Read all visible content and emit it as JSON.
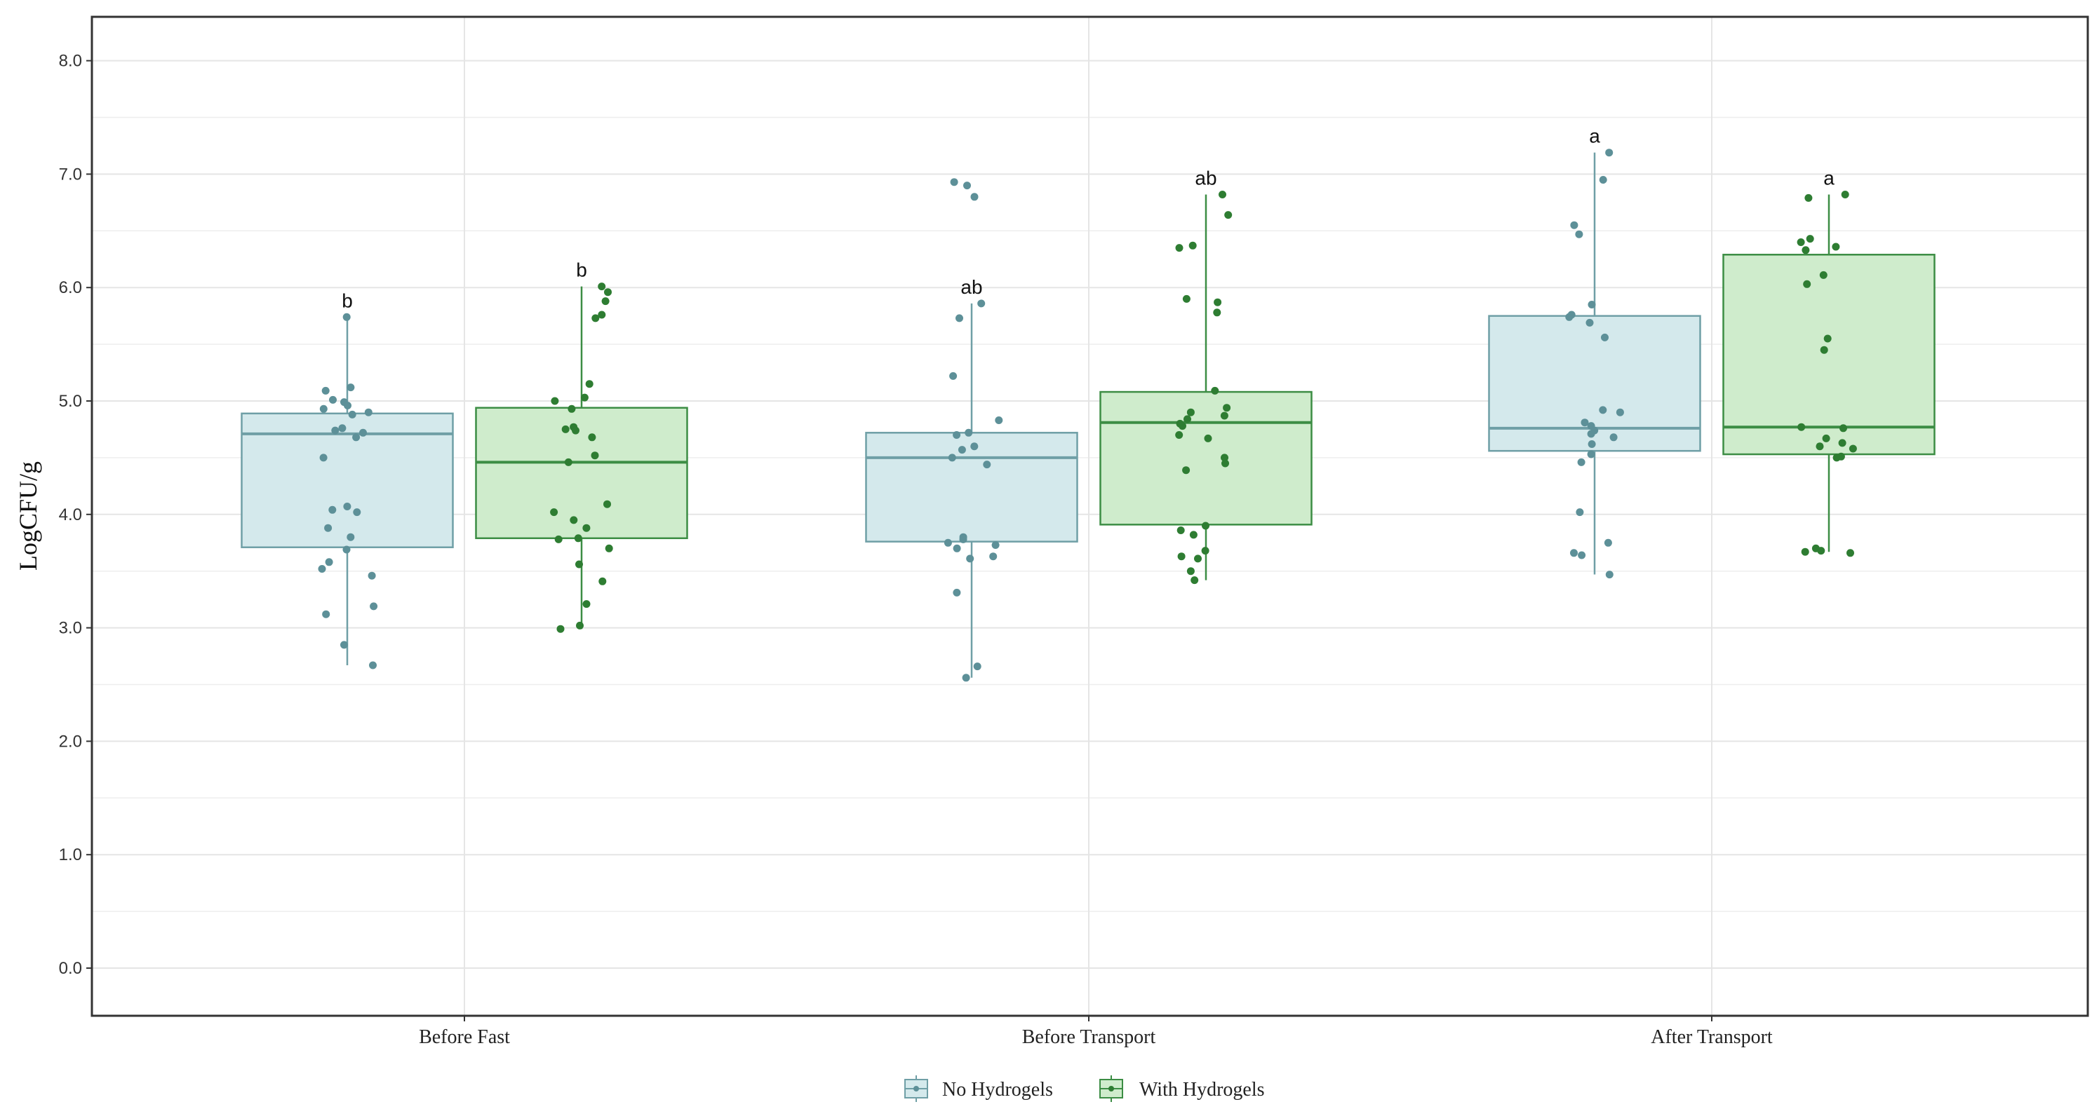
{
  "chart_data": {
    "type": "box",
    "ylabel": "LogCFU/g",
    "xlabel": "",
    "ylim": [
      -0.4,
      8.4
    ],
    "yticks": [
      "0.0",
      "1.0",
      "2.0",
      "3.0",
      "4.0",
      "5.0",
      "6.0",
      "7.0",
      "8.0"
    ],
    "categories": [
      "Before Fast",
      "Before Transport",
      "After Transport"
    ],
    "legend_position": "bottom",
    "colors": {
      "no_fill": "#d4e9ec",
      "no_line": "#6f9fa6",
      "no_point": "#5d9098",
      "with_fill": "#cfeccc",
      "with_line": "#3c8d44",
      "with_point": "#2e7d32",
      "grid": "#e5e5e5",
      "frame": "#333333"
    },
    "series": [
      {
        "name": "No Hydrogels",
        "boxes": [
          {
            "category": "Before Fast",
            "q1": 3.71,
            "median": 4.71,
            "q3": 4.89,
            "whisker_low": 2.67,
            "whisker_high": 5.74,
            "letter": "b",
            "points": [
              5.74,
              5.12,
              5.09,
              5.01,
              4.99,
              4.96,
              4.93,
              4.9,
              4.88,
              4.76,
              4.74,
              4.72,
              4.68,
              4.5,
              4.07,
              4.04,
              4.02,
              3.88,
              3.8,
              3.69,
              3.58,
              3.52,
              3.46,
              3.19,
              3.12,
              2.85,
              2.67
            ]
          },
          {
            "category": "Before Transport",
            "q1": 3.76,
            "median": 4.5,
            "q3": 4.72,
            "whisker_low": 2.56,
            "whisker_high": 5.86,
            "letter": "ab",
            "points": [
              6.93,
              6.9,
              6.8,
              5.86,
              5.73,
              5.22,
              4.83,
              4.72,
              4.7,
              4.6,
              4.57,
              4.5,
              4.44,
              3.8,
              3.78,
              3.75,
              3.73,
              3.7,
              3.63,
              3.61,
              3.31,
              2.66,
              2.56
            ]
          },
          {
            "category": "After Transport",
            "q1": 4.56,
            "median": 4.76,
            "q3": 5.75,
            "whisker_low": 3.47,
            "whisker_high": 7.19,
            "letter": "a",
            "points": [
              7.19,
              6.95,
              6.55,
              6.47,
              5.85,
              5.76,
              5.74,
              5.69,
              5.56,
              4.92,
              4.9,
              4.81,
              4.78,
              4.74,
              4.71,
              4.68,
              4.62,
              4.53,
              4.46,
              4.02,
              3.75,
              3.66,
              3.64,
              3.47
            ]
          }
        ]
      },
      {
        "name": "With Hydrogels",
        "boxes": [
          {
            "category": "Before Fast",
            "q1": 3.79,
            "median": 4.46,
            "q3": 4.94,
            "whisker_low": 2.99,
            "whisker_high": 6.01,
            "letter": "b",
            "points": [
              6.01,
              5.96,
              5.88,
              5.76,
              5.73,
              5.15,
              5.03,
              5.0,
              4.93,
              4.77,
              4.75,
              4.74,
              4.68,
              4.52,
              4.46,
              4.09,
              4.02,
              3.95,
              3.88,
              3.79,
              3.78,
              3.7,
              3.56,
              3.41,
              3.21,
              3.02,
              2.99
            ]
          },
          {
            "category": "Before Transport",
            "q1": 3.91,
            "median": 4.81,
            "q3": 5.08,
            "whisker_low": 3.42,
            "whisker_high": 6.82,
            "letter": "ab",
            "points": [
              6.82,
              6.64,
              6.37,
              6.35,
              5.9,
              5.87,
              5.78,
              5.09,
              4.94,
              4.9,
              4.87,
              4.84,
              4.8,
              4.78,
              4.7,
              4.67,
              4.5,
              4.45,
              4.39,
              3.9,
              3.86,
              3.82,
              3.68,
              3.63,
              3.61,
              3.5,
              3.42
            ]
          },
          {
            "category": "After Transport",
            "q1": 4.53,
            "median": 4.77,
            "q3": 6.29,
            "whisker_low": 3.67,
            "whisker_high": 6.82,
            "letter": "a",
            "points": [
              6.82,
              6.79,
              6.43,
              6.4,
              6.36,
              6.33,
              6.11,
              6.03,
              5.55,
              5.45,
              4.77,
              4.76,
              4.67,
              4.63,
              4.6,
              4.58,
              4.51,
              4.5,
              3.7,
              3.68,
              3.67,
              3.66
            ]
          }
        ]
      }
    ]
  }
}
